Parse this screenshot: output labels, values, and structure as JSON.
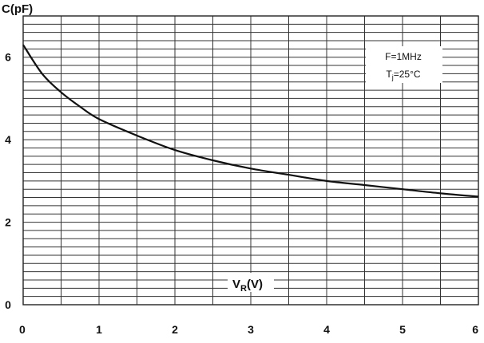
{
  "chart_data": {
    "type": "line",
    "title": "",
    "ylabel": "C(pF)",
    "xlabel": {
      "main": "V",
      "sub": "R",
      "suffix": "(V)"
    },
    "xlim": [
      0,
      6
    ],
    "ylim": [
      0,
      7
    ],
    "x_ticks": [
      "0",
      "1",
      "2",
      "3",
      "4",
      "5",
      "6"
    ],
    "y_ticks": [
      "0",
      "2",
      "4",
      "6"
    ],
    "grid": true,
    "annotations": {
      "freq": "F=1MHz",
      "temp": {
        "main": "T",
        "sub": "j",
        "suffix": "=25°C"
      }
    },
    "series": [
      {
        "x": [
          0,
          0.25,
          0.5,
          0.75,
          1,
          1.5,
          2,
          2.5,
          3,
          3.5,
          4,
          4.5,
          5,
          5.5,
          6
        ],
        "values": [
          6.3,
          5.6,
          5.15,
          4.8,
          4.5,
          4.1,
          3.75,
          3.5,
          3.3,
          3.15,
          3.0,
          2.9,
          2.8,
          2.7,
          2.62
        ]
      }
    ]
  }
}
